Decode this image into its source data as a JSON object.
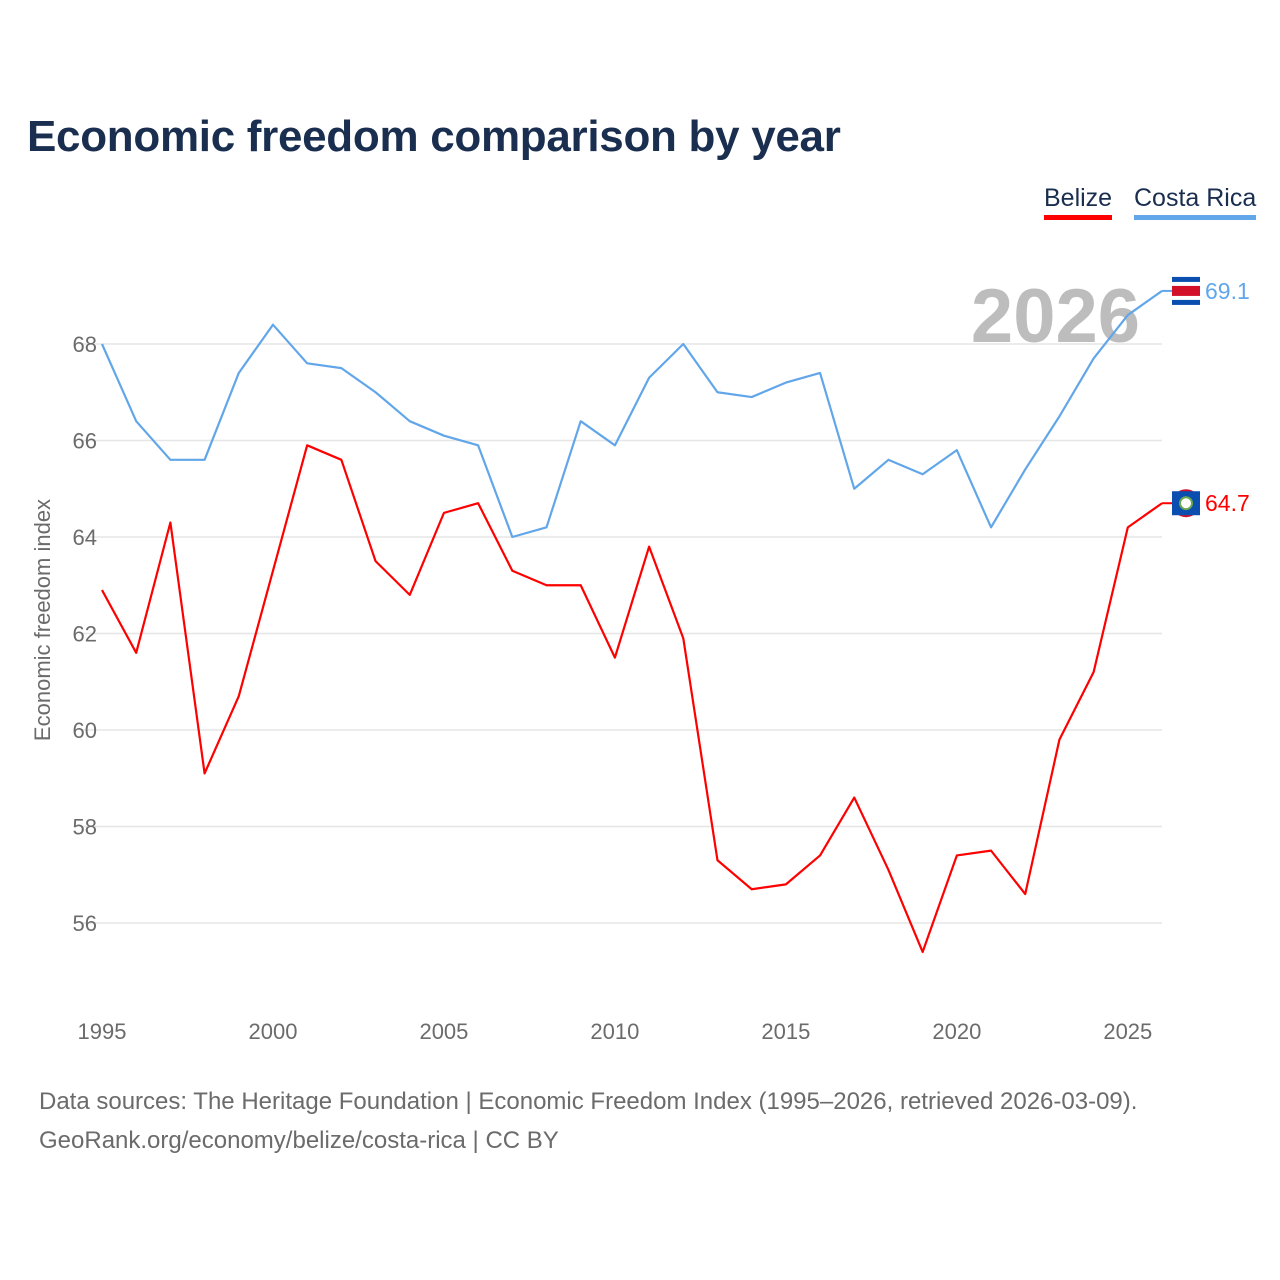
{
  "chart_data": {
    "type": "line",
    "title": "Economic freedom comparison by year",
    "xlabel": "",
    "ylabel": "Economic freedom index",
    "xlim": [
      1995,
      2026
    ],
    "ylim": [
      54.4,
      69.6
    ],
    "yticks": [
      56,
      58,
      60,
      62,
      64,
      66,
      68
    ],
    "xticks": [
      1995,
      2000,
      2005,
      2010,
      2015,
      2020,
      2025
    ],
    "grid": true,
    "legend_position": "top-right",
    "watermark_year": "2026",
    "x": [
      1995,
      1996,
      1997,
      1998,
      1999,
      2000,
      2001,
      2002,
      2003,
      2004,
      2005,
      2006,
      2007,
      2008,
      2009,
      2010,
      2011,
      2012,
      2013,
      2014,
      2015,
      2016,
      2017,
      2018,
      2019,
      2020,
      2021,
      2022,
      2023,
      2024,
      2025,
      2026
    ],
    "series": [
      {
        "name": "Belize",
        "color": "#ff0000",
        "end_label": "64.7",
        "values": [
          62.9,
          61.6,
          64.3,
          59.1,
          60.7,
          63.3,
          65.9,
          65.6,
          63.5,
          62.8,
          64.5,
          64.7,
          63.3,
          63.0,
          63.0,
          61.5,
          63.8,
          61.9,
          57.3,
          56.7,
          56.8,
          57.4,
          58.6,
          57.1,
          55.4,
          57.4,
          57.5,
          56.6,
          59.8,
          61.2,
          64.2,
          64.7
        ]
      },
      {
        "name": "Costa Rica",
        "color": "#62a6ea",
        "end_label": "69.1",
        "values": [
          68.0,
          66.4,
          65.6,
          65.6,
          67.4,
          68.4,
          67.6,
          67.5,
          67.0,
          66.4,
          66.1,
          65.9,
          64.0,
          64.2,
          66.4,
          65.9,
          67.3,
          68.0,
          67.0,
          66.9,
          67.2,
          67.4,
          65.0,
          65.6,
          65.3,
          65.8,
          64.2,
          65.4,
          66.5,
          67.7,
          68.6,
          69.1
        ]
      }
    ]
  },
  "footer": {
    "line1": "Data sources: The Heritage Foundation | Economic Freedom Index (1995–2026, retrieved 2026-03-09).",
    "line2": "GeoRank.org/economy/belize/costa-rica | CC BY"
  }
}
